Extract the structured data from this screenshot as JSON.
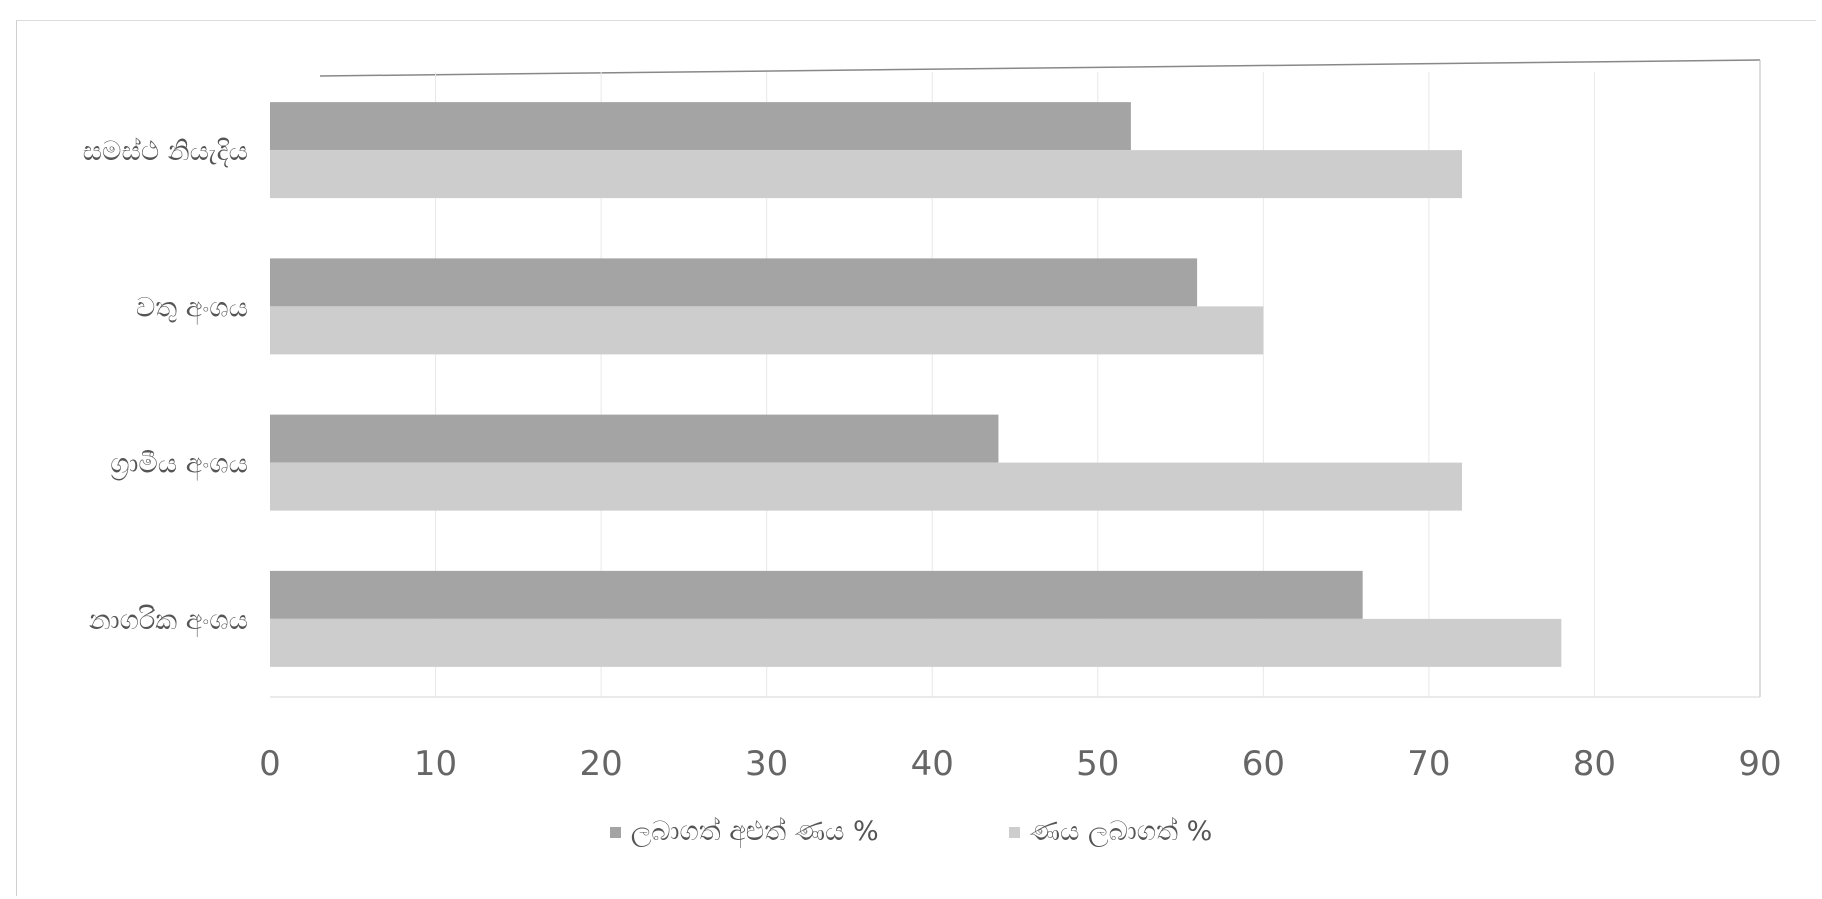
{
  "chart_data": {
    "type": "bar",
    "orientation": "horizontal",
    "categories": [
      "සමස්ථ නියැදිය",
      "වතු අංශය",
      "ග්‍රාමීය අංශය",
      "නාගරික අංශය"
    ],
    "series": [
      {
        "name": "ලබාගත් අළුත් ණය %",
        "values": [
          52,
          56,
          44,
          66
        ],
        "color": "#a4a4a4"
      },
      {
        "name": "ණය ලබාගත් %",
        "values": [
          72,
          60,
          72,
          78
        ],
        "color": "#cdcdcd"
      }
    ],
    "xlim": [
      0,
      90
    ],
    "xticks": [
      "0",
      "10",
      "20",
      "30",
      "40",
      "50",
      "60",
      "70",
      "80",
      "90"
    ],
    "grid": true,
    "legend_position": "bottom"
  }
}
